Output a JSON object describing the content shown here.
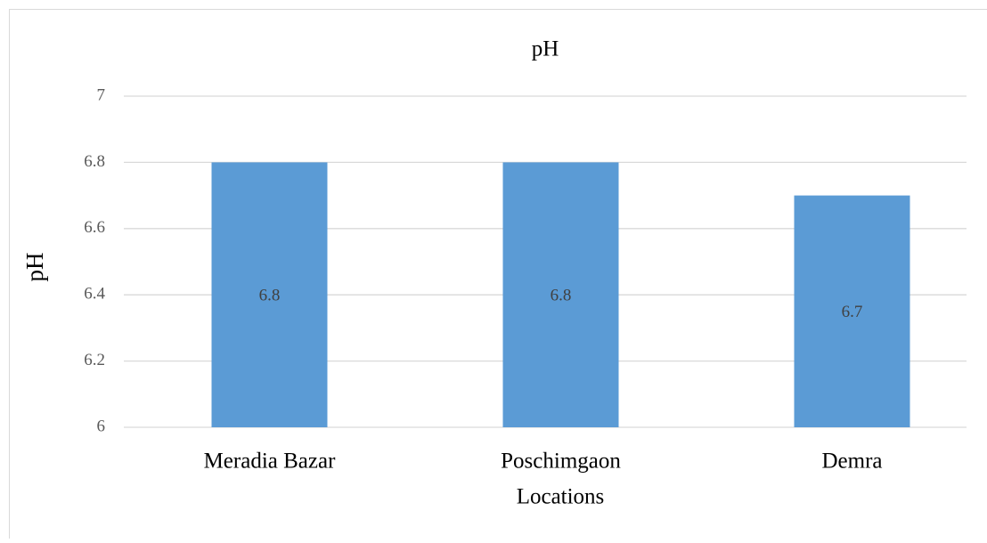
{
  "chart_data": {
    "type": "bar",
    "title": "pH",
    "y_label": "pH",
    "x_label": "Locations",
    "categories": [
      "Meradia Bazar",
      "Poschimgaon",
      "Demra"
    ],
    "values": [
      6.8,
      6.8,
      6.7
    ],
    "color": "#5b9bd5",
    "ylim": [
      6,
      7
    ],
    "yticks": [
      6,
      6.2,
      6.4,
      6.6,
      6.8,
      7
    ],
    "grid": true
  }
}
